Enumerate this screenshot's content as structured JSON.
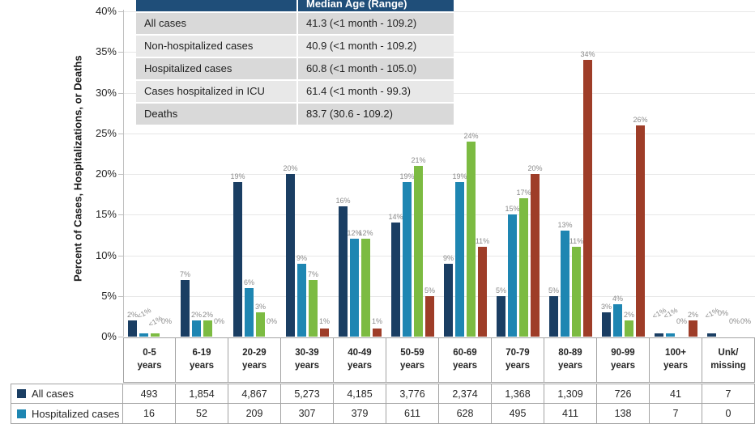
{
  "figure": {
    "y_axis_title": "Percent of Cases, Hospitalizations, or Deaths",
    "yticks": [
      "0%",
      "5%",
      "10%",
      "15%",
      "20%",
      "25%",
      "30%",
      "35%",
      "40%"
    ]
  },
  "median_table": {
    "header": "Median Age (Range)",
    "rows": [
      {
        "label": "All cases",
        "value": "41.3 (<1 month - 109.2)"
      },
      {
        "label": "Non-hospitalized cases",
        "value": "40.9 (<1 month - 109.2)"
      },
      {
        "label": "Hospitalized cases",
        "value": "60.8 (<1 month - 105.0)"
      },
      {
        "label": "Cases hospitalized in ICU",
        "value": "61.4 (<1 month - 99.3)"
      },
      {
        "label": "Deaths",
        "value": "83.7 (30.6 - 109.2)"
      }
    ]
  },
  "chart_data": {
    "type": "bar",
    "y_axis_title": "Percent of Cases, Hospitalizations, or Deaths",
    "ylim": [
      0,
      40
    ],
    "ytick_step": 5,
    "grid": true,
    "legend_position": "bottom-left table rows",
    "categories": [
      "0-5 years",
      "6-19 years",
      "20-29 years",
      "30-39 years",
      "40-49 years",
      "50-59 years",
      "60-69 years",
      "70-79 years",
      "80-89 years",
      "90-99 years",
      "100+ years",
      "Unk/missing"
    ],
    "series": [
      {
        "name": "All cases",
        "color": "#1a3e63",
        "values": [
          2,
          7,
          19,
          20,
          16,
          14,
          9,
          5,
          5,
          3,
          0.4,
          0.4
        ],
        "labels": [
          "2%",
          "7%",
          "19%",
          "20%",
          "16%",
          "14%",
          "9%",
          "5%",
          "5%",
          "3%",
          "<1%",
          "<1%"
        ]
      },
      {
        "name": "Hospitalized cases",
        "color": "#1e86b2",
        "values": [
          0.4,
          2,
          6,
          9,
          12,
          19,
          19,
          15,
          13,
          4,
          0.4,
          0
        ],
        "labels": [
          "<1%",
          "2%",
          "6%",
          "9%",
          "12%",
          "19%",
          "19%",
          "15%",
          "13%",
          "4%",
          "<1%",
          "0%"
        ]
      },
      {
        "name": "",
        "color": "#7cbb42",
        "values": [
          0.4,
          2,
          3,
          7,
          12,
          21,
          24,
          17,
          11,
          2,
          0,
          0
        ],
        "labels": [
          "<1%",
          "2%",
          "3%",
          "7%",
          "12%",
          "21%",
          "24%",
          "17%",
          "11%",
          "2%",
          "0%",
          "0%"
        ]
      },
      {
        "name": "",
        "color": "#9e3d28",
        "values": [
          0,
          0,
          0,
          1,
          1,
          5,
          11,
          20,
          34,
          26,
          2,
          0
        ],
        "labels": [
          "0%",
          "0%",
          "0%",
          "1%",
          "1%",
          "5%",
          "11%",
          "20%",
          "34%",
          "26%",
          "2%",
          "0%"
        ]
      }
    ]
  },
  "bottom_table": {
    "column_headers": [
      [
        "0-5",
        "years"
      ],
      [
        "6-19",
        "years"
      ],
      [
        "20-29",
        "years"
      ],
      [
        "30-39",
        "years"
      ],
      [
        "40-49",
        "years"
      ],
      [
        "50-59",
        "years"
      ],
      [
        "60-69",
        "years"
      ],
      [
        "70-79",
        "years"
      ],
      [
        "80-89",
        "years"
      ],
      [
        "90-99",
        "years"
      ],
      [
        "100+",
        "years"
      ],
      [
        "Unk/",
        "missing"
      ]
    ],
    "rows": [
      {
        "label": "All cases",
        "swatch_color": "#1a3e63",
        "values": [
          "493",
          "1,854",
          "4,867",
          "5,273",
          "4,185",
          "3,776",
          "2,374",
          "1,368",
          "1,309",
          "726",
          "41",
          "7"
        ]
      },
      {
        "label": "Hospitalized cases",
        "swatch_color": "#1e86b2",
        "values": [
          "16",
          "52",
          "209",
          "307",
          "379",
          "611",
          "628",
          "495",
          "411",
          "138",
          "7",
          "0"
        ]
      }
    ]
  },
  "colors": {
    "median_header_bg": "#1f4e79",
    "median_row_dark": "#d9d9d9",
    "median_row_light": "#e8e8e8",
    "gridline": "#e7e7e7",
    "axis": "#bfbfbf",
    "table_border": "#a3a3a3",
    "data_label": "#8a8a8a"
  }
}
